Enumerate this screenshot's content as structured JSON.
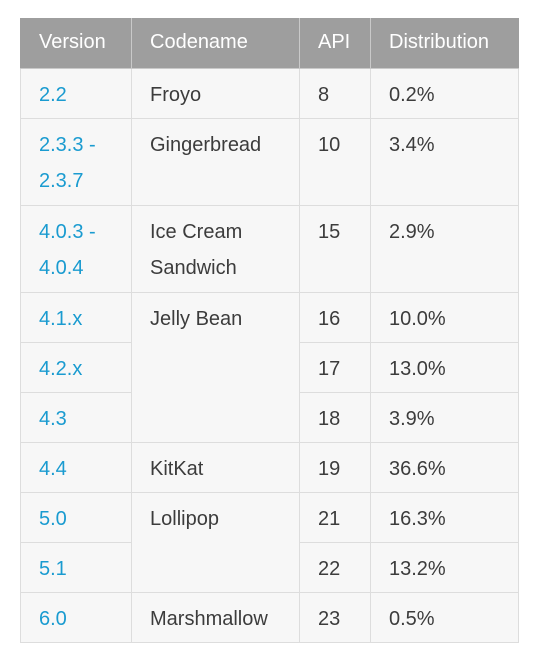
{
  "header": {
    "version": "Version",
    "codename": "Codename",
    "api": "API",
    "distribution": "Distribution"
  },
  "rows": [
    {
      "version": "2.2",
      "codename": "Froyo",
      "api": "8",
      "distribution": "0.2%"
    },
    {
      "version": "2.3.3 -\n2.3.7",
      "codename": "Gingerbread",
      "api": "10",
      "distribution": "3.4%"
    },
    {
      "version": "4.0.3 -\n4.0.4",
      "codename": "Ice Cream\nSandwich",
      "api": "15",
      "distribution": "2.9%"
    },
    {
      "version": "4.1.x",
      "codename": "Jelly Bean",
      "api": "16",
      "distribution": "10.0%"
    },
    {
      "version": "4.2.x",
      "codename": "",
      "api": "17",
      "distribution": "13.0%"
    },
    {
      "version": "4.3",
      "codename": "",
      "api": "18",
      "distribution": "3.9%"
    },
    {
      "version": "4.4",
      "codename": "KitKat",
      "api": "19",
      "distribution": "36.6%"
    },
    {
      "version": "5.0",
      "codename": "Lollipop",
      "api": "21",
      "distribution": "16.3%"
    },
    {
      "version": "5.1",
      "codename": "",
      "api": "22",
      "distribution": "13.2%"
    },
    {
      "version": "6.0",
      "codename": "Marshmallow",
      "api": "23",
      "distribution": "0.5%"
    }
  ],
  "colors": {
    "header_bg": "#9e9e9e",
    "cell_bg": "#f7f7f7",
    "version_link": "#1a9bd0",
    "text": "#3c3c3c"
  }
}
